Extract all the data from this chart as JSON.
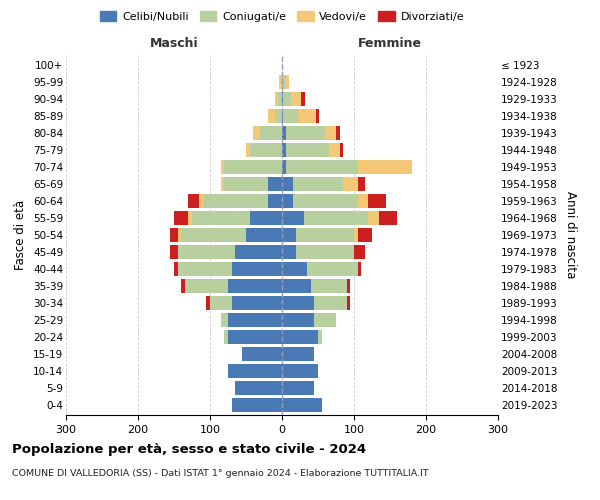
{
  "age_groups": [
    "0-4",
    "5-9",
    "10-14",
    "15-19",
    "20-24",
    "25-29",
    "30-34",
    "35-39",
    "40-44",
    "45-49",
    "50-54",
    "55-59",
    "60-64",
    "65-69",
    "70-74",
    "75-79",
    "80-84",
    "85-89",
    "90-94",
    "95-99",
    "100+"
  ],
  "birth_years": [
    "2019-2023",
    "2014-2018",
    "2009-2013",
    "2004-2008",
    "1999-2003",
    "1994-1998",
    "1989-1993",
    "1984-1988",
    "1979-1983",
    "1974-1978",
    "1969-1973",
    "1964-1968",
    "1959-1963",
    "1954-1958",
    "1949-1953",
    "1944-1948",
    "1939-1943",
    "1934-1938",
    "1929-1933",
    "1924-1928",
    "≤ 1923"
  ],
  "maschi": {
    "celibi": [
      70,
      65,
      75,
      55,
      75,
      75,
      70,
      75,
      70,
      65,
      50,
      45,
      20,
      20,
      0,
      0,
      0,
      0,
      0,
      0,
      0
    ],
    "coniugati": [
      0,
      0,
      0,
      0,
      5,
      10,
      30,
      60,
      75,
      80,
      90,
      80,
      90,
      60,
      80,
      45,
      30,
      10,
      5,
      2,
      0
    ],
    "vedovi": [
      0,
      0,
      0,
      0,
      0,
      0,
      0,
      0,
      0,
      0,
      5,
      5,
      5,
      5,
      5,
      5,
      10,
      10,
      5,
      2,
      0
    ],
    "divorziati": [
      0,
      0,
      0,
      0,
      0,
      0,
      5,
      5,
      5,
      10,
      10,
      20,
      15,
      0,
      0,
      0,
      0,
      0,
      0,
      0,
      0
    ]
  },
  "femmine": {
    "nubili": [
      55,
      45,
      50,
      45,
      50,
      45,
      45,
      40,
      35,
      20,
      20,
      30,
      15,
      15,
      5,
      5,
      5,
      2,
      2,
      0,
      0
    ],
    "coniugate": [
      0,
      0,
      0,
      0,
      5,
      30,
      45,
      50,
      70,
      80,
      80,
      90,
      90,
      70,
      100,
      60,
      55,
      20,
      10,
      5,
      0
    ],
    "vedove": [
      0,
      0,
      0,
      0,
      0,
      0,
      0,
      0,
      0,
      0,
      5,
      15,
      15,
      20,
      75,
      15,
      15,
      25,
      15,
      5,
      0
    ],
    "divorziate": [
      0,
      0,
      0,
      0,
      0,
      0,
      5,
      5,
      5,
      15,
      20,
      25,
      25,
      10,
      0,
      5,
      5,
      5,
      5,
      0,
      0
    ]
  },
  "colors": {
    "celibi": "#4a7ab5",
    "coniugati": "#b8cfa0",
    "vedovi": "#f5c878",
    "divorziati": "#cc2020"
  },
  "title": "Popolazione per età, sesso e stato civile - 2024",
  "subtitle": "COMUNE DI VALLEDORIA (SS) - Dati ISTAT 1° gennaio 2024 - Elaborazione TUTTITALIA.IT",
  "xlabel_left": "Maschi",
  "xlabel_right": "Femmine",
  "ylabel_left": "Fasce di età",
  "ylabel_right": "Anni di nascita",
  "xlim": 300,
  "bg_color": "#ffffff",
  "grid_color": "#cccccc"
}
